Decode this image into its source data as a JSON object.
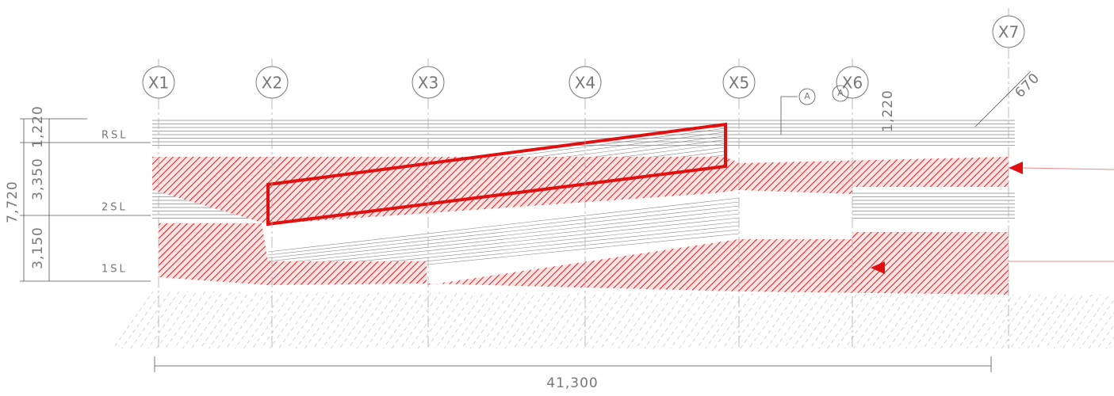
{
  "grid_axes": [
    "X1",
    "X2",
    "X3",
    "X4",
    "X5",
    "X6",
    "X7"
  ],
  "levels": [
    "RSL",
    "2SL",
    "1SL"
  ],
  "dimensions": {
    "total_height": "7,720",
    "top": "1,220",
    "middle": "3,350",
    "bottom": "3,150",
    "total_width": "41,300",
    "right_top": "1,220",
    "slope": "670"
  },
  "markers": [
    "A",
    "A"
  ]
}
